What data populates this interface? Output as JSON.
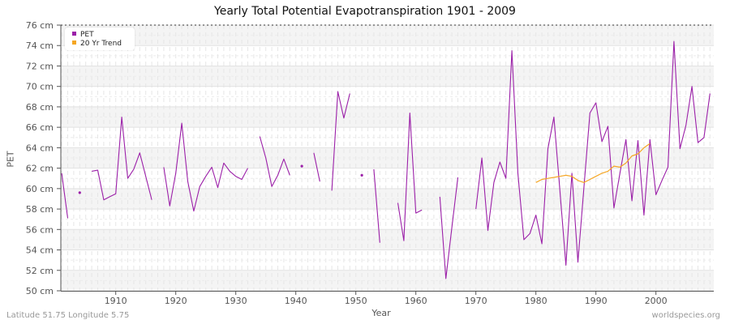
{
  "chart_data": {
    "type": "line",
    "title": "Yearly Total Potential Evapotranspiration 1901 - 2009",
    "xlabel": "Year",
    "ylabel": "PET",
    "xlim": [
      1901,
      2009
    ],
    "ylim": [
      50,
      76
    ],
    "y_unit": "cm",
    "y_ticks": [
      50,
      52,
      54,
      56,
      58,
      60,
      62,
      64,
      66,
      68,
      70,
      72,
      74,
      76
    ],
    "y_tick_labels": [
      "50 cm",
      "52 cm",
      "54 cm",
      "56 cm",
      "58 cm",
      "60 cm",
      "62 cm",
      "64 cm",
      "66 cm",
      "68 cm",
      "70 cm",
      "72 cm",
      "74 cm",
      "76 cm"
    ],
    "x_ticks": [
      1910,
      1920,
      1930,
      1940,
      1950,
      1960,
      1970,
      1980,
      1990,
      2000
    ],
    "x_tick_labels": [
      "1910",
      "1920",
      "1930",
      "1940",
      "1950",
      "1960",
      "1970",
      "1980",
      "1990",
      "2000"
    ],
    "grid": true,
    "legend_position": "top-left",
    "series": [
      {
        "name": "PET",
        "color": "#9b1fa8",
        "x": [
          1901,
          1902,
          1903,
          1904,
          1905,
          1906,
          1907,
          1908,
          1909,
          1910,
          1911,
          1912,
          1913,
          1914,
          1915,
          1916,
          1917,
          1918,
          1919,
          1920,
          1921,
          1922,
          1923,
          1924,
          1925,
          1926,
          1927,
          1928,
          1929,
          1930,
          1931,
          1932,
          1933,
          1934,
          1935,
          1936,
          1937,
          1938,
          1939,
          1940,
          1941,
          1942,
          1943,
          1944,
          1945,
          1946,
          1947,
          1948,
          1949,
          1950,
          1951,
          1952,
          1953,
          1954,
          1955,
          1956,
          1957,
          1958,
          1959,
          1960,
          1961,
          1962,
          1963,
          1964,
          1965,
          1966,
          1967,
          1968,
          1969,
          1970,
          1971,
          1972,
          1973,
          1974,
          1975,
          1976,
          1977,
          1978,
          1979,
          1980,
          1981,
          1982,
          1983,
          1984,
          1985,
          1986,
          1987,
          1988,
          1989,
          1990,
          1991,
          1992,
          1993,
          1994,
          1995,
          1996,
          1997,
          1998,
          1999,
          2000,
          2001,
          2002,
          2003,
          2004,
          2005,
          2006,
          2007,
          2008,
          2009
        ],
        "values": [
          61.5,
          57.1,
          null,
          59.6,
          null,
          61.7,
          61.8,
          58.9,
          59.2,
          59.5,
          67.0,
          61.0,
          61.9,
          63.5,
          61.2,
          58.9,
          null,
          62.1,
          58.3,
          61.5,
          66.4,
          60.7,
          57.8,
          60.2,
          61.2,
          62.1,
          60.1,
          62.5,
          61.7,
          61.2,
          60.9,
          62.0,
          null,
          65.1,
          63.0,
          60.2,
          61.3,
          62.9,
          61.3,
          null,
          62.2,
          null,
          63.5,
          60.7,
          null,
          59.8,
          69.5,
          66.9,
          69.3,
          null,
          61.3,
          null,
          61.9,
          54.7,
          null,
          null,
          58.6,
          54.9,
          67.4,
          57.6,
          57.9,
          null,
          null,
          59.2,
          51.2,
          56.2,
          61.1,
          null,
          null,
          58.0,
          63.0,
          55.9,
          60.6,
          62.6,
          61.0,
          73.5,
          61.5,
          55.0,
          55.6,
          57.4,
          54.6,
          63.9,
          67.0,
          59.8,
          52.5,
          61.5,
          52.8,
          60.1,
          67.4,
          68.4,
          64.6,
          66.1,
          58.1,
          61.5,
          64.8,
          58.8,
          64.7,
          57.4,
          64.8,
          59.4,
          60.8,
          62.1,
          74.4,
          63.9,
          66.2,
          70.0,
          64.5,
          65.0,
          69.3
        ]
      },
      {
        "name": "20 Yr Trend",
        "color": "#f5a623",
        "x": [
          1980,
          1981,
          1982,
          1983,
          1984,
          1985,
          1986,
          1987,
          1988,
          1989,
          1990,
          1991,
          1992,
          1993,
          1994,
          1995,
          1996,
          1997,
          1998,
          1999
        ],
        "values": [
          60.6,
          60.9,
          61.0,
          61.1,
          61.2,
          61.3,
          61.2,
          60.8,
          60.6,
          60.9,
          61.2,
          61.5,
          61.7,
          62.2,
          62.1,
          62.5,
          63.2,
          63.4,
          64.0,
          64.4
        ]
      }
    ],
    "footer": {
      "left": "Latitude 51.75 Longitude 5.75",
      "right": "worldspecies.org"
    }
  }
}
